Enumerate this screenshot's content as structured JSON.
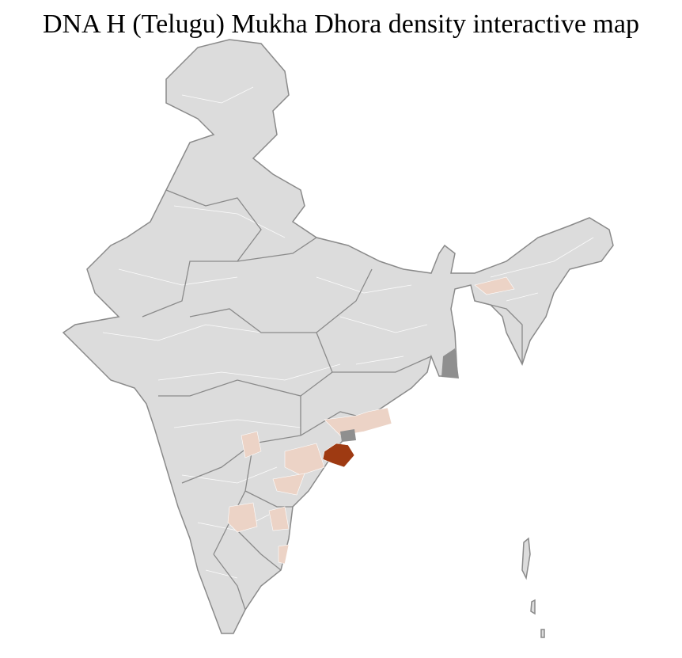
{
  "title": "DNA H (Telugu) Mukha Dhora density interactive map"
}
